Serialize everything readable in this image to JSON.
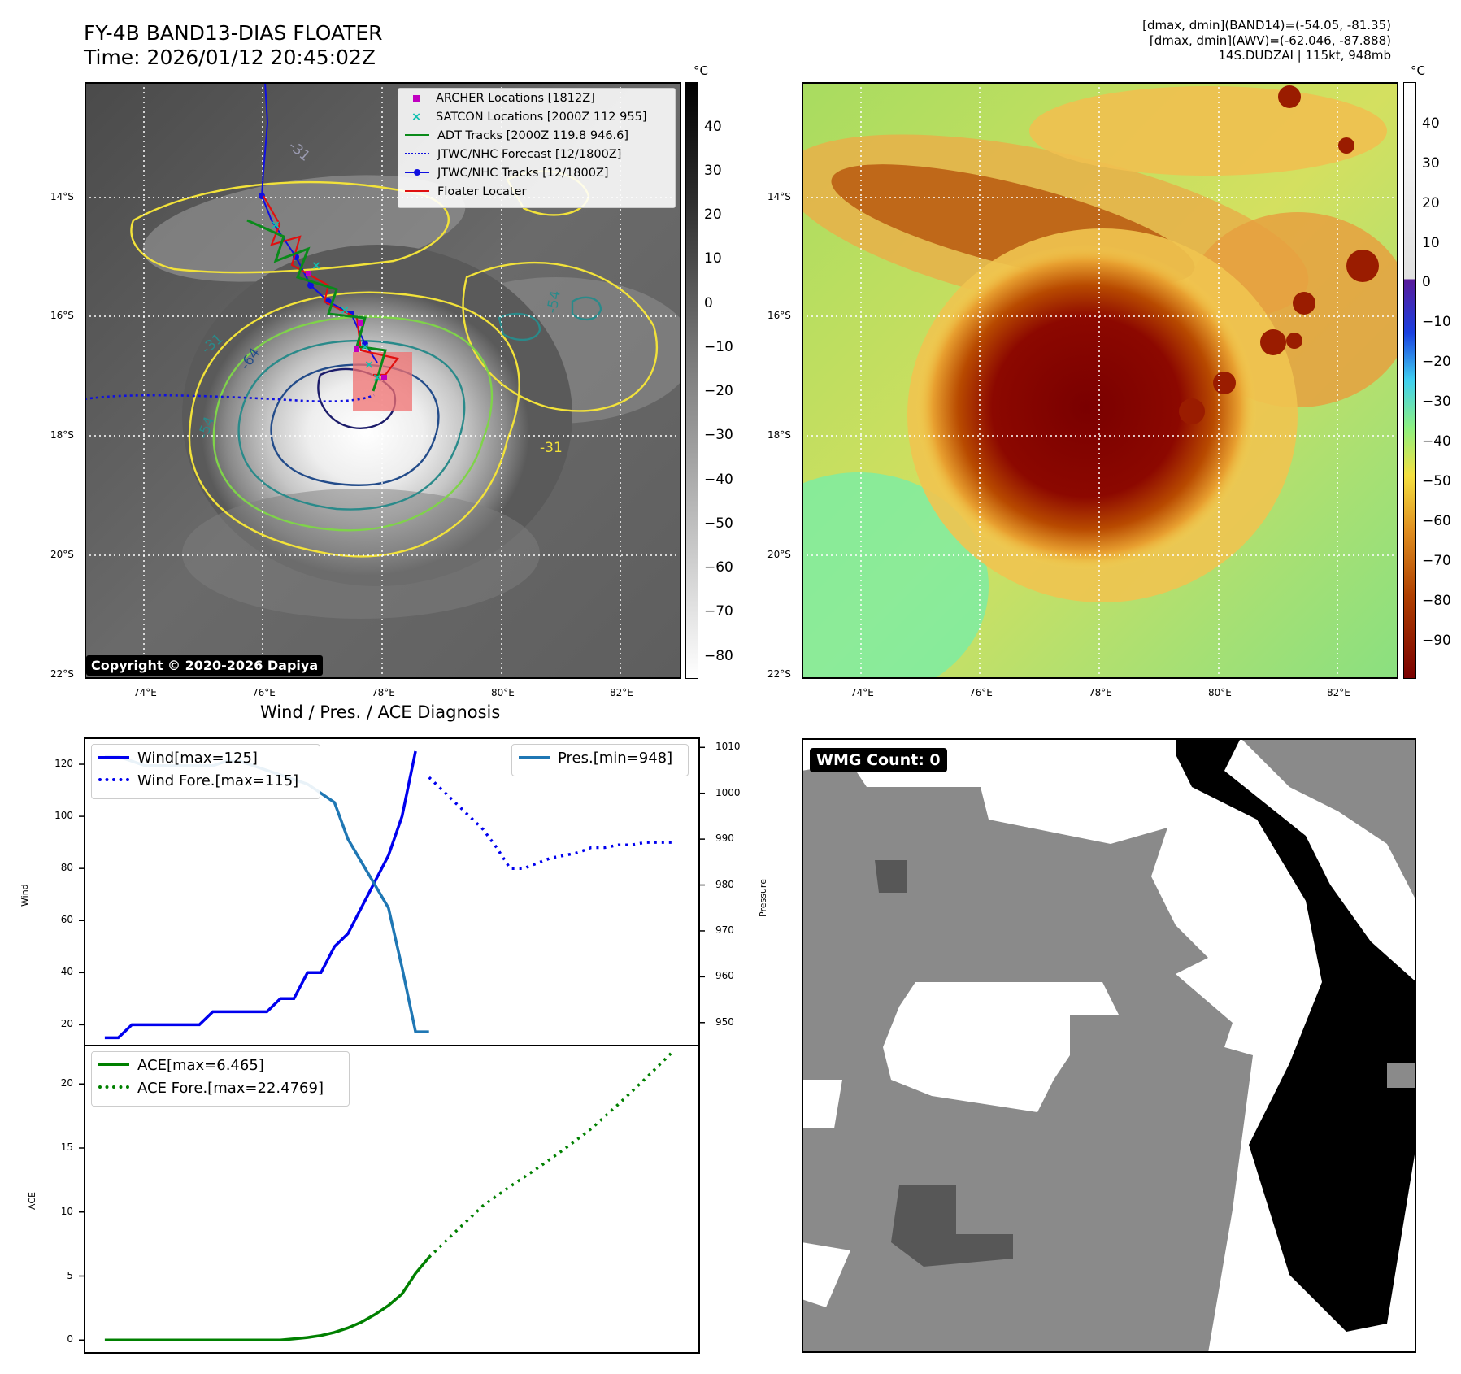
{
  "header": {
    "title_line1": "FY-4B BAND13-DIAS FLOATER",
    "title_line2": "Time: 2026/01/12 20:45:02Z",
    "info_line1": "[dmax, dmin](BAND14)=(-54.05, -81.35)",
    "info_line2": "[dmax, dmin](AWV)=(-62.046, -87.888)",
    "info_line3": "14S.DUDZAI | 115kt, 948mb"
  },
  "map": {
    "lat_labels": [
      "14°S",
      "16°S",
      "18°S",
      "20°S",
      "22°S"
    ],
    "lon_labels": [
      "74°E",
      "76°E",
      "78°E",
      "80°E",
      "82°E"
    ],
    "copyright": "Copyright © 2020-2026 Dapiya",
    "contour_labels": [
      "-31",
      "-54",
      "-64",
      "-54",
      "-31",
      "-54",
      "-31"
    ],
    "colorbar_unit": "°C",
    "colorbar_ticks": [
      "40",
      "30",
      "20",
      "10",
      "0",
      "−10",
      "−20",
      "−30",
      "−40",
      "−50",
      "−60",
      "−70",
      "−80"
    ],
    "legend": [
      {
        "label": "ARCHER Locations [1812Z]",
        "color": "#c000c0",
        "marker": "square"
      },
      {
        "label": "SATCON Locations [2000Z 112 955]",
        "color": "#10c0b0",
        "marker": "x"
      },
      {
        "label": "ADT Tracks [2000Z 119.8 946.6]",
        "color": "#0a8a1a",
        "marker": "line"
      },
      {
        "label": "JTWC/NHC Forecast [12/1800Z]",
        "color": "#1010e0",
        "marker": "dotted"
      },
      {
        "label": "JTWC/NHC Tracks [12/1800Z]",
        "color": "#1010e0",
        "marker": "line-dot"
      },
      {
        "label": "Floater Locater",
        "color": "#e01010",
        "marker": "line"
      }
    ]
  },
  "awv": {
    "lat_labels": [
      "14°S",
      "16°S",
      "18°S",
      "20°S",
      "22°S"
    ],
    "lon_labels": [
      "74°E",
      "76°E",
      "78°E",
      "80°E",
      "82°E"
    ],
    "colorbar_unit": "°C",
    "colorbar_ticks": [
      "40",
      "30",
      "20",
      "10",
      "0",
      "−10",
      "−20",
      "−30",
      "−40",
      "−50",
      "−60",
      "−70",
      "−80",
      "−90"
    ]
  },
  "diagnosis": {
    "title": "Wind / Pres. / ACE Diagnosis",
    "wind_ylabel": "Wind",
    "pres_ylabel": "Pressure",
    "ace_ylabel": "ACE",
    "wind_ticks": [
      "120",
      "100",
      "80",
      "60",
      "40",
      "20"
    ],
    "pres_ticks": [
      "1010",
      "1000",
      "990",
      "980",
      "970",
      "960",
      "950"
    ],
    "ace_ticks": [
      "20",
      "15",
      "10",
      "5",
      "0"
    ],
    "legend_wind": "Wind[max=125]",
    "legend_wind_fore": "Wind Fore.[max=115]",
    "legend_pres": "Pres.[min=948]",
    "legend_ace": "ACE[max=6.465]",
    "legend_ace_fore": "ACE Fore.[max=22.4769]"
  },
  "wmg": {
    "count_label": "WMG Count: 0"
  },
  "chart_data": [
    {
      "type": "line",
      "title": "Wind / Pres. / ACE Diagnosis",
      "ylabel": "Wind",
      "ylim": [
        12,
        130
      ],
      "series": [
        {
          "name": "Wind[max=125]",
          "style": "solid",
          "color": "#0000ee",
          "x": [
            0,
            1,
            2,
            3,
            4,
            5,
            6,
            7,
            8,
            9,
            10,
            11,
            12,
            13,
            14,
            15,
            16,
            17,
            18,
            19,
            20,
            21,
            22,
            23
          ],
          "values": [
            15,
            15,
            20,
            20,
            20,
            20,
            20,
            20,
            25,
            25,
            25,
            25,
            25,
            30,
            30,
            40,
            40,
            50,
            55,
            65,
            75,
            85,
            100,
            125
          ]
        },
        {
          "name": "Wind Fore.[max=115]",
          "style": "dotted",
          "color": "#0000ee",
          "x": [
            24,
            25,
            26,
            27,
            28,
            29,
            30,
            31,
            32,
            33,
            34,
            35,
            36,
            37,
            38,
            39,
            40,
            41,
            42
          ],
          "values": [
            115,
            110,
            105,
            100,
            95,
            88,
            80,
            80,
            82,
            84,
            85,
            86,
            88,
            88,
            89,
            89,
            90,
            90,
            90
          ]
        }
      ]
    },
    {
      "type": "line",
      "ylabel": "Pressure",
      "ylim": [
        945,
        1012
      ],
      "series": [
        {
          "name": "Pres.[min=948]",
          "style": "solid",
          "color": "#1f77b4",
          "x": [
            0,
            1,
            2,
            3,
            4,
            5,
            6,
            7,
            8,
            9,
            10,
            11,
            12,
            13,
            14,
            15,
            16,
            17,
            18,
            19,
            20,
            21,
            22,
            23,
            24
          ],
          "values": [
            1008,
            1008,
            1007,
            1006,
            1006,
            1006,
            1006,
            1006,
            1006,
            1007,
            1007,
            1006,
            1005,
            1004,
            1003,
            1002,
            1000,
            998,
            990,
            985,
            980,
            975,
            962,
            948,
            948
          ]
        }
      ]
    },
    {
      "type": "line",
      "ylabel": "ACE",
      "ylim": [
        -1,
        23
      ],
      "series": [
        {
          "name": "ACE[max=6.465]",
          "style": "solid",
          "color": "#008000",
          "x": [
            0,
            1,
            2,
            3,
            4,
            5,
            6,
            7,
            8,
            9,
            10,
            11,
            12,
            13,
            14,
            15,
            16,
            17,
            18,
            19,
            20,
            21,
            22,
            23,
            24
          ],
          "values": [
            0,
            0,
            0,
            0,
            0,
            0,
            0,
            0,
            0,
            0,
            0,
            0,
            0,
            0,
            0.1,
            0.2,
            0.35,
            0.6,
            0.95,
            1.4,
            2.0,
            2.7,
            3.6,
            5.2,
            6.465
          ]
        },
        {
          "name": "ACE Fore.[max=22.4769]",
          "style": "dotted",
          "color": "#008000",
          "x": [
            24,
            26,
            28,
            30,
            32,
            34,
            36,
            38,
            40,
            42
          ],
          "values": [
            6.465,
            8.5,
            10.5,
            12.0,
            13.4,
            14.9,
            16.5,
            18.4,
            20.4,
            22.4769
          ]
        }
      ]
    }
  ]
}
